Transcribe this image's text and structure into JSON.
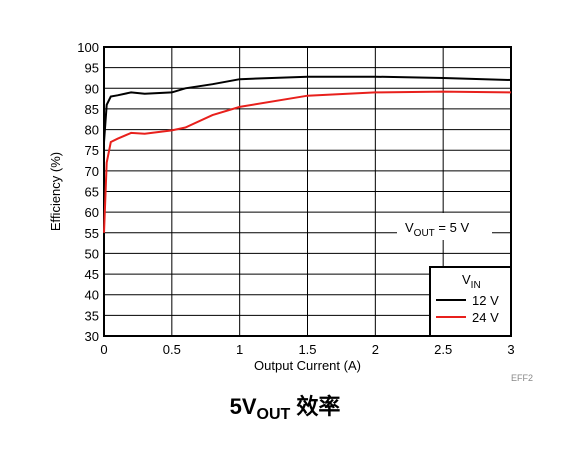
{
  "chart_data": {
    "type": "line",
    "title": {
      "main": "5V",
      "sub": "OUT",
      "rest": " 效率"
    },
    "x_label": "Output Current (A)",
    "y_label": "Efficiency (%)",
    "figure_code": "EFF2",
    "annotation": {
      "main": "V",
      "sub": "OUT",
      "rest": " = 5 V"
    },
    "legend_title": {
      "main": "V",
      "sub": "IN"
    },
    "legend_position": "lower right",
    "grid": true,
    "xlim": [
      0,
      3
    ],
    "ylim": [
      30,
      100
    ],
    "xticks": [
      0,
      0.5,
      1,
      1.5,
      2,
      2.5,
      3
    ],
    "yticks": [
      30,
      35,
      40,
      45,
      50,
      55,
      60,
      65,
      70,
      75,
      80,
      85,
      90,
      95,
      100
    ],
    "x": [
      0,
      0.02,
      0.05,
      0.1,
      0.2,
      0.3,
      0.5,
      0.6,
      0.8,
      1.0,
      1.5,
      2.0,
      2.5,
      3.0
    ],
    "series": [
      {
        "name": "12 V",
        "color": "#000000",
        "values": [
          77,
          86,
          88,
          88.3,
          89,
          88.7,
          89,
          90,
          91,
          92.2,
          92.8,
          92.8,
          92.5,
          92
        ]
      },
      {
        "name": "24 V",
        "color": "#e8201c",
        "values": [
          55,
          72,
          77,
          77.8,
          79.2,
          79,
          79.8,
          80.5,
          83.5,
          85.5,
          88.2,
          89,
          89.2,
          89
        ]
      }
    ]
  }
}
